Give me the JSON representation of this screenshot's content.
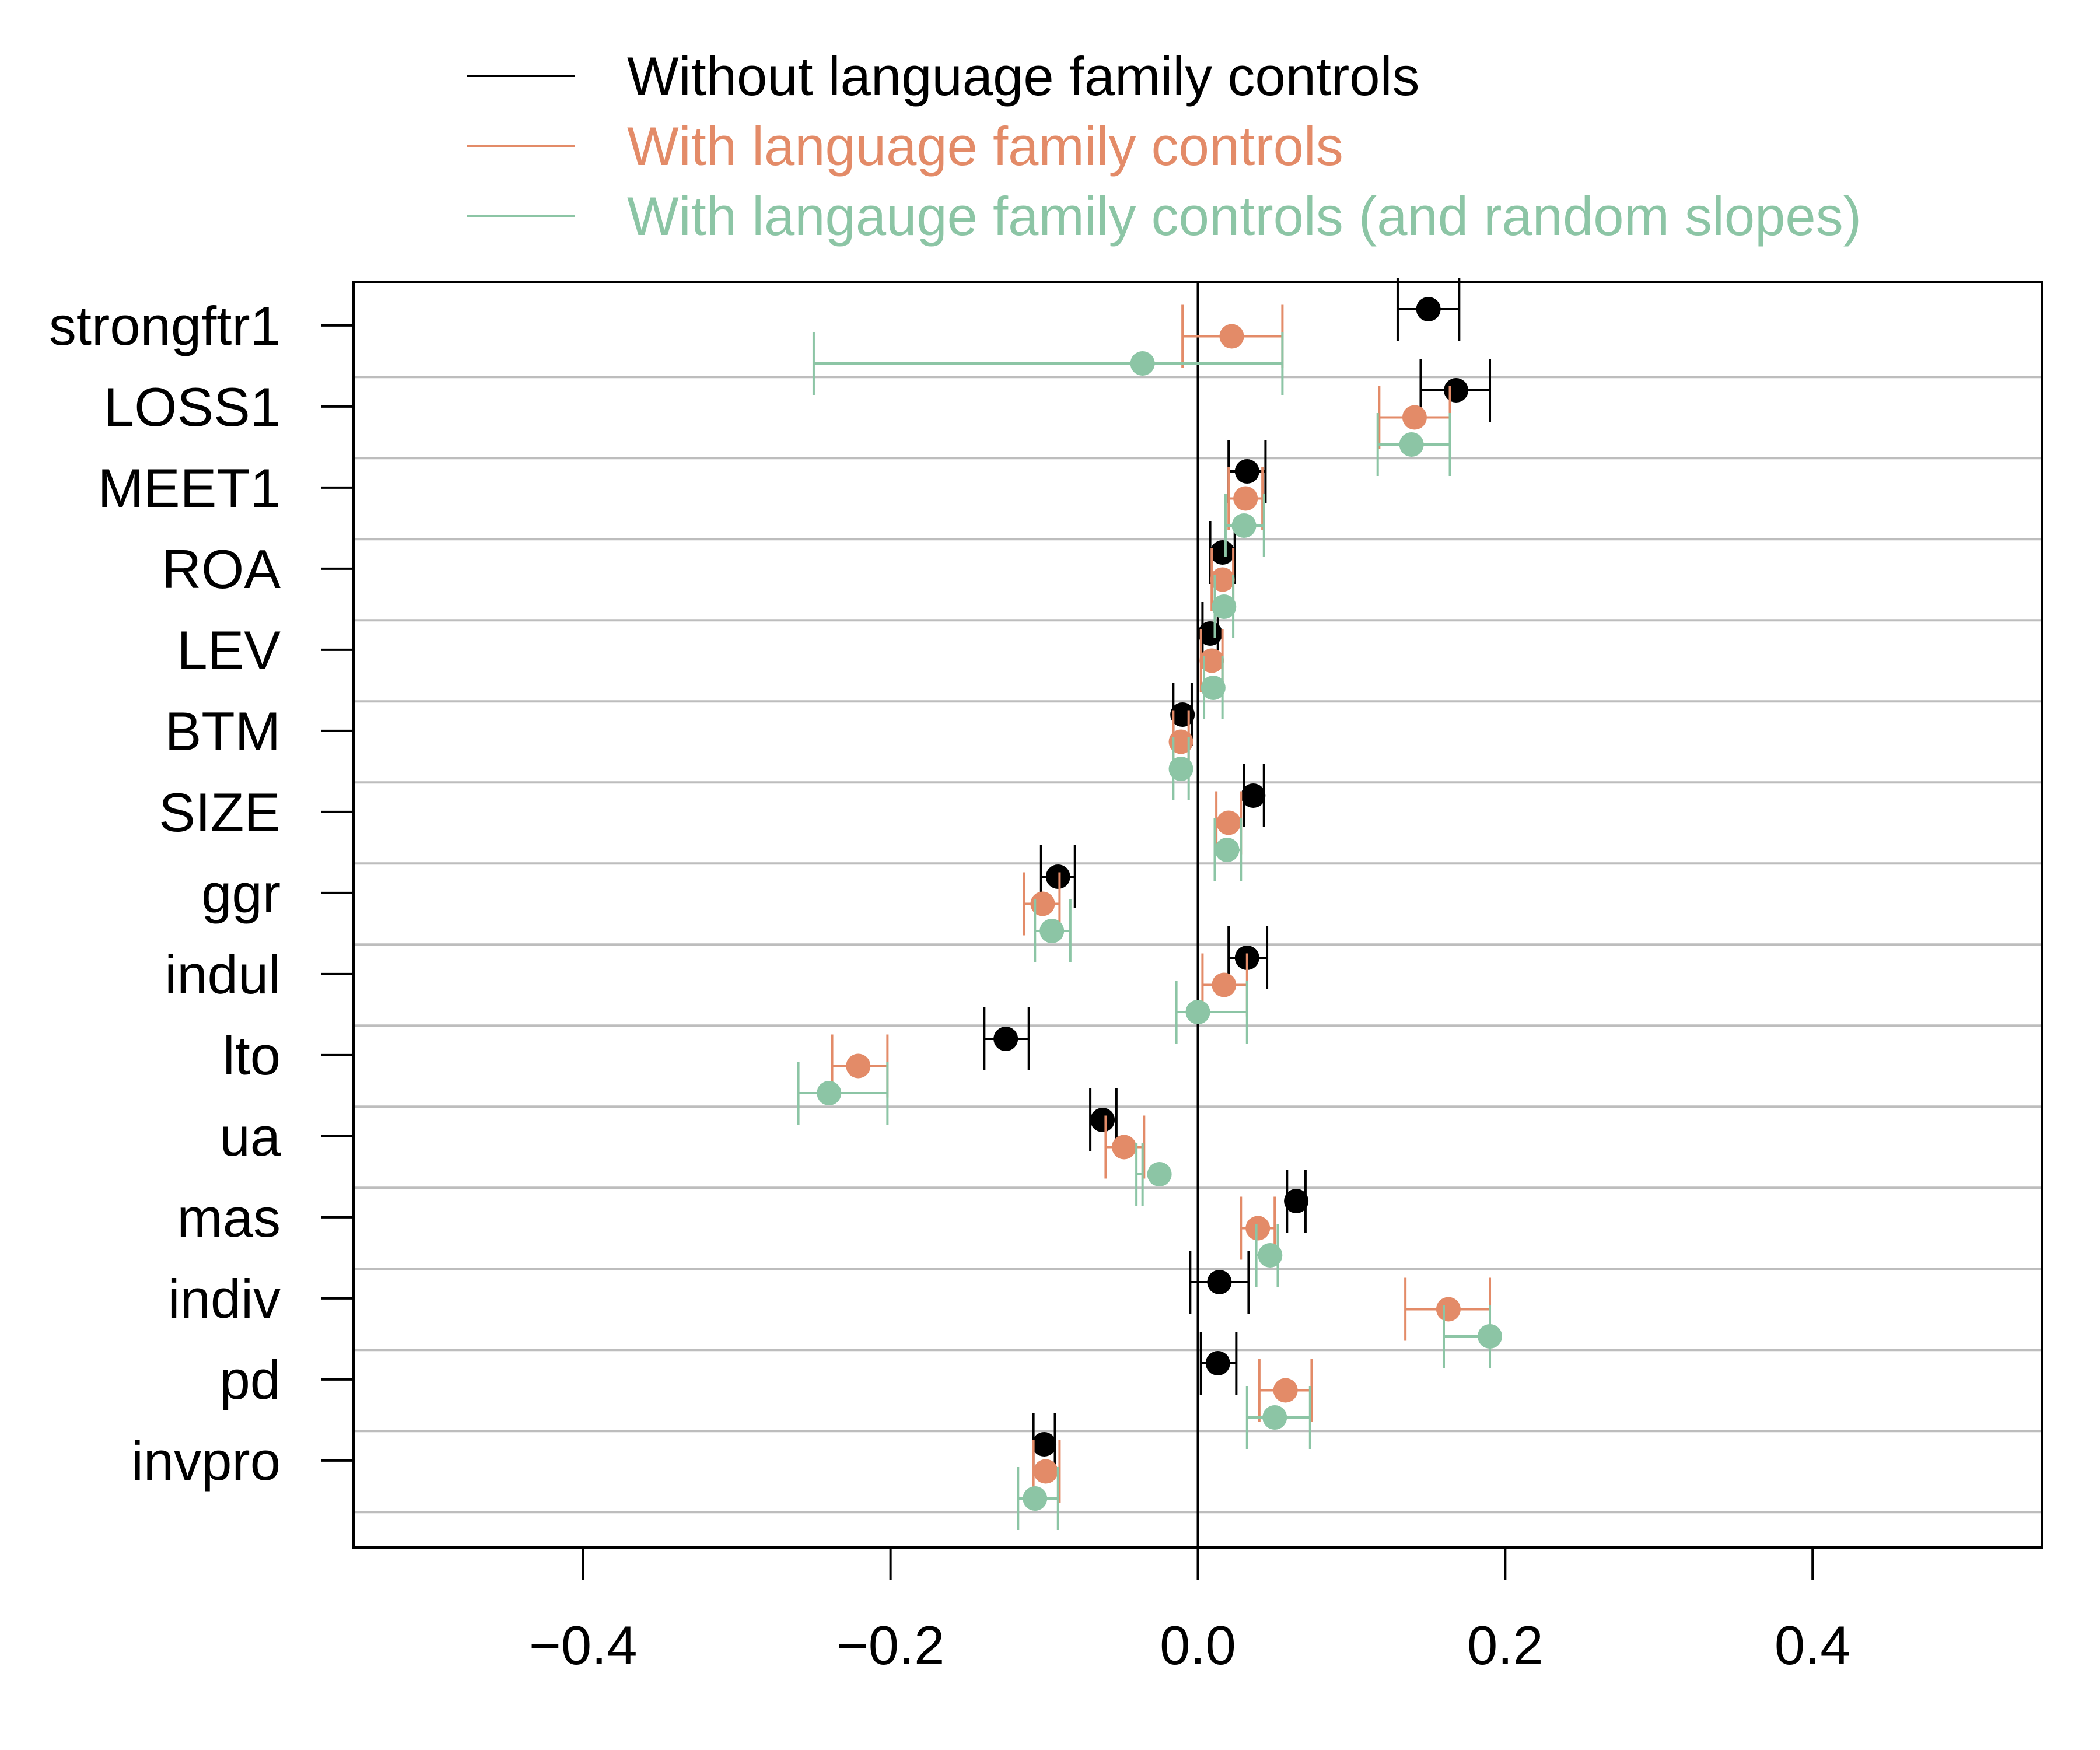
{
  "chart_data": {
    "type": "forest",
    "title": "",
    "xlabel": "",
    "ylabel": "",
    "xlim": [
      -0.54,
      0.54
    ],
    "x_ticks": [
      -0.4,
      -0.2,
      0.0,
      0.2,
      0.4
    ],
    "x_tick_labels": [
      "−0.4",
      "−0.2",
      "0.0",
      "0.2",
      "0.4"
    ],
    "grid": "horizontal separators",
    "legend_position": "top",
    "categories": [
      "strongftr1",
      "LOSS1",
      "MEET1",
      "ROA",
      "LEV",
      "BTM",
      "SIZE",
      "ggr",
      "indul",
      "lto",
      "ua",
      "mas",
      "indiv",
      "pd",
      "invpro"
    ],
    "series": [
      {
        "name": "Without language family controls",
        "color": "#000000",
        "estimates": [
          0.15,
          0.168,
          0.032,
          0.016,
          0.008,
          -0.01,
          0.036,
          -0.091,
          0.032,
          -0.125,
          -0.062,
          0.064,
          0.014,
          0.013,
          -0.1
        ],
        "lower": [
          0.13,
          0.145,
          0.02,
          0.008,
          0.003,
          -0.016,
          0.03,
          -0.102,
          0.02,
          -0.139,
          -0.07,
          0.058,
          -0.005,
          0.002,
          -0.107
        ],
        "upper": [
          0.17,
          0.19,
          0.044,
          0.024,
          0.013,
          -0.004,
          0.043,
          -0.08,
          0.045,
          -0.11,
          -0.053,
          0.07,
          0.033,
          0.025,
          -0.093
        ]
      },
      {
        "name": "With language family controls",
        "color": "#E38B68",
        "estimates": [
          0.022,
          0.141,
          0.031,
          0.016,
          0.009,
          -0.011,
          0.02,
          -0.101,
          0.017,
          -0.221,
          -0.048,
          0.039,
          0.163,
          0.057,
          -0.099
        ],
        "lower": [
          -0.01,
          0.118,
          0.02,
          0.009,
          0.002,
          -0.016,
          0.012,
          -0.113,
          0.003,
          -0.238,
          -0.06,
          0.028,
          0.135,
          0.04,
          -0.107
        ],
        "upper": [
          0.055,
          0.164,
          0.042,
          0.023,
          0.016,
          -0.006,
          0.028,
          -0.09,
          0.032,
          -0.202,
          -0.035,
          0.05,
          0.19,
          0.074,
          -0.09
        ]
      },
      {
        "name": "With langauge family controls (and random slopes)",
        "color": "#8CC5A5",
        "estimates": [
          -0.036,
          0.139,
          0.03,
          0.017,
          0.01,
          -0.011,
          0.019,
          -0.095,
          0.0,
          -0.24,
          -0.025,
          0.047,
          0.19,
          0.05,
          -0.106
        ],
        "lower": [
          -0.25,
          0.117,
          0.018,
          0.011,
          0.004,
          -0.016,
          0.011,
          -0.106,
          -0.014,
          -0.26,
          -0.04,
          0.038,
          0.16,
          0.032,
          -0.117
        ],
        "upper": [
          0.055,
          0.164,
          0.043,
          0.023,
          0.016,
          -0.006,
          0.028,
          -0.083,
          0.032,
          -0.202,
          -0.036,
          0.052,
          0.19,
          0.073,
          -0.091
        ]
      }
    ]
  }
}
